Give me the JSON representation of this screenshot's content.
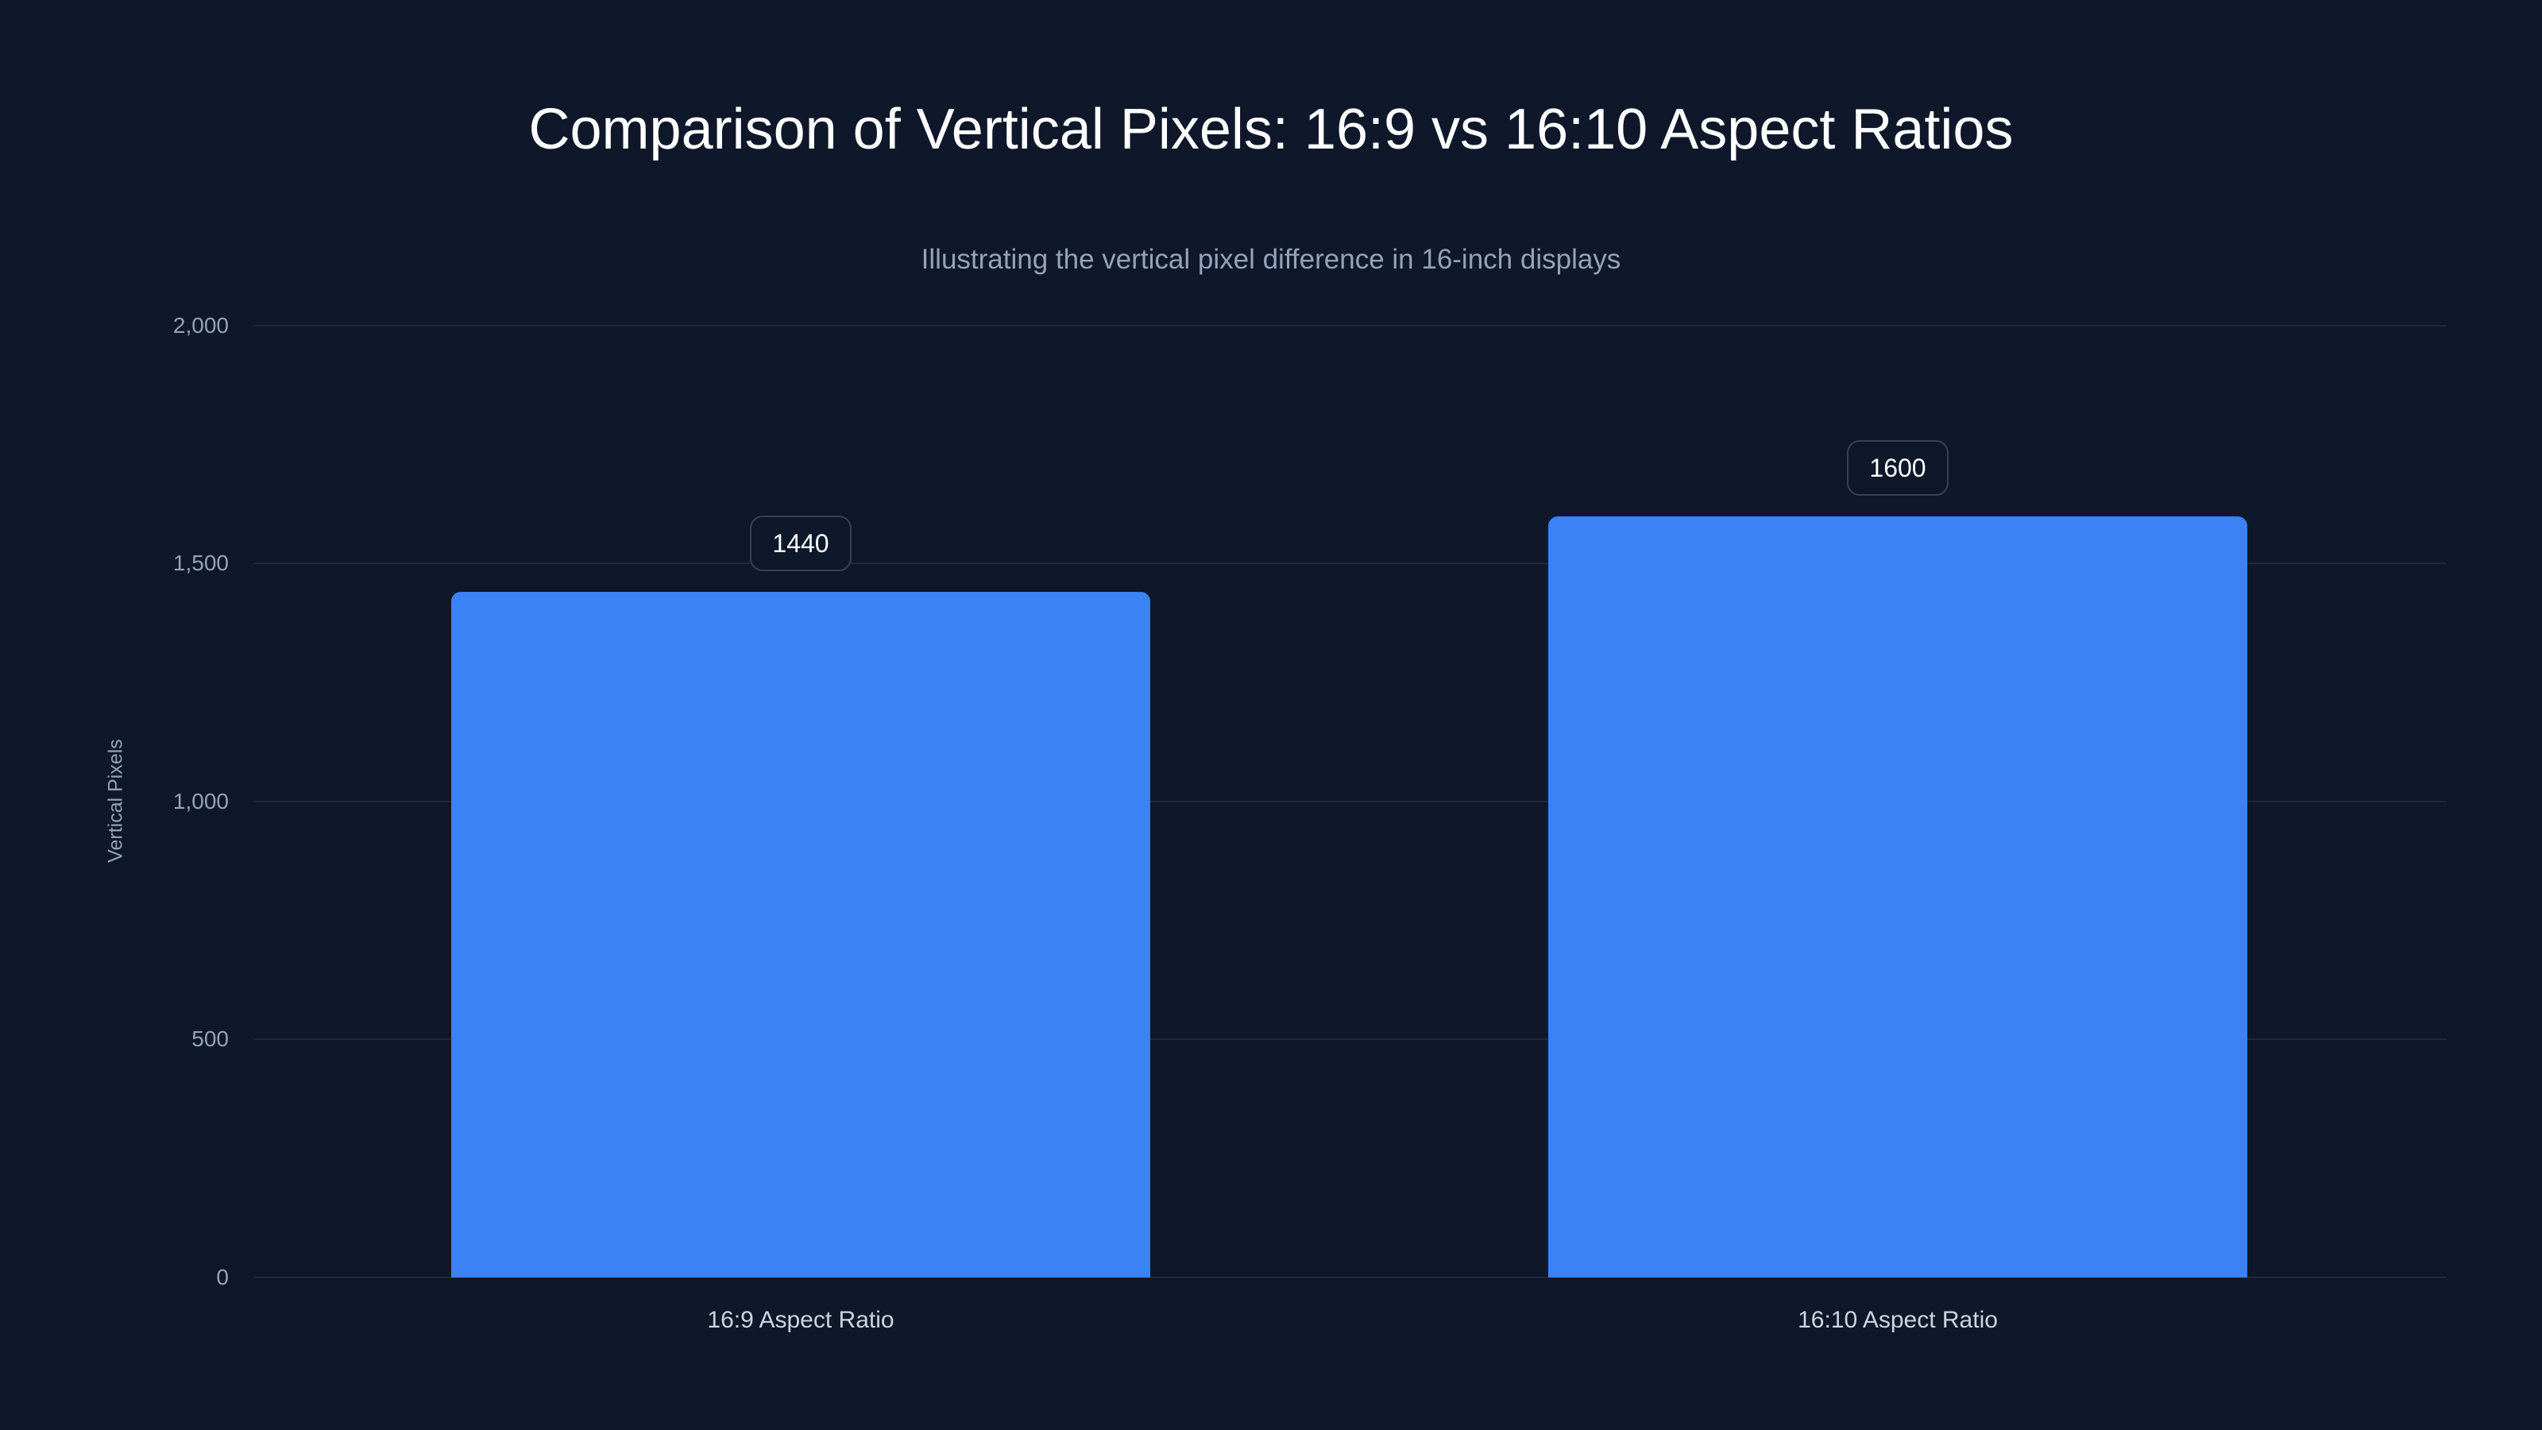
{
  "chart_data": {
    "type": "bar",
    "title": "Comparison of Vertical Pixels: 16:9 vs 16:10 Aspect Ratios",
    "subtitle": "Illustrating the vertical pixel difference in 16-inch displays",
    "xlabel": "",
    "ylabel": "Vertical Pixels",
    "categories": [
      "16:9 Aspect Ratio",
      "16:10 Aspect Ratio"
    ],
    "values": [
      1440,
      1600
    ],
    "value_labels": [
      "1440",
      "1600"
    ],
    "ylim": [
      0,
      2000
    ],
    "yticks": [
      "0",
      "500",
      "1,000",
      "1,500",
      "2,000"
    ],
    "grid": true,
    "legend": "none",
    "colors": {
      "bar": "#3b82f6",
      "background": "#0f172a",
      "grid": "#1e293b"
    }
  }
}
